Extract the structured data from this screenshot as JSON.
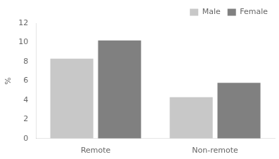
{
  "chart_data": {
    "type": "bar",
    "ylabel": "%",
    "categories": [
      "Remote",
      "Non-remote"
    ],
    "series": [
      {
        "name": "Male",
        "color": "#c8c8c8",
        "values": [
          8.3,
          4.3
        ]
      },
      {
        "name": "Female",
        "color": "#808080",
        "values": [
          10.2,
          5.8
        ]
      }
    ],
    "ylim": [
      0,
      12
    ],
    "yticks": [
      0,
      2,
      4,
      6,
      8,
      10,
      12
    ],
    "grid": false,
    "legend": "upper right"
  }
}
